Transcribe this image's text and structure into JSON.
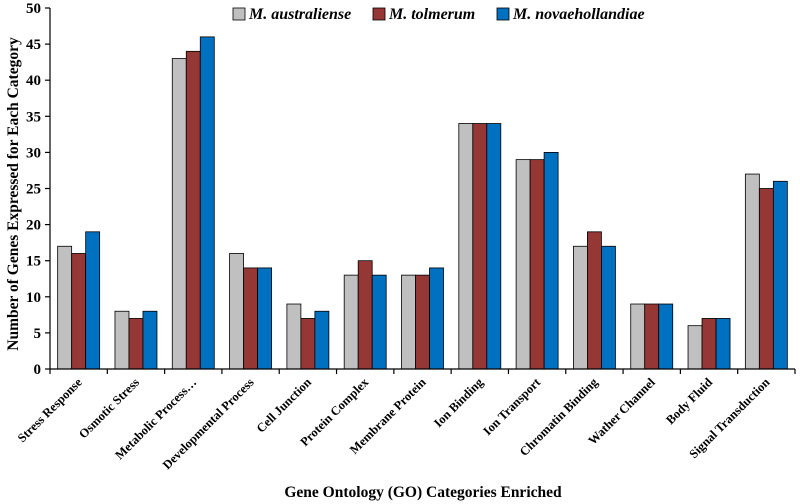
{
  "chart_data": {
    "type": "bar",
    "categories": [
      "Stress Response",
      "Osmotic Stress",
      "Metabolic Process…",
      "Developmental Process",
      "Cell Junction",
      "Protein Complex",
      "Membrane Protein",
      "Ion Binding",
      "Ion Transport",
      "Chromatin Binding",
      "Wather Channel",
      "Body Fluid",
      "Signal Transduction"
    ],
    "series": [
      {
        "name": "M. australiense",
        "color": "#c0c0c0",
        "values": [
          17,
          8,
          43,
          16,
          9,
          13,
          13,
          34,
          29,
          17,
          9,
          6,
          27
        ]
      },
      {
        "name": "M. tolmerum",
        "color": "#953735",
        "values": [
          16,
          7,
          44,
          14,
          7,
          15,
          13,
          34,
          29,
          19,
          9,
          7,
          25
        ]
      },
      {
        "name": "M. novaehollandiae",
        "color": "#0070c0",
        "values": [
          19,
          8,
          46,
          14,
          8,
          13,
          14,
          34,
          30,
          17,
          9,
          7,
          26
        ]
      }
    ],
    "xlabel": "Gene Ontology (GO) Categories Enriched",
    "ylabel": "Number of Genes Expressed for Each Category",
    "ylim": [
      0,
      50
    ],
    "yticks": [
      0,
      5,
      10,
      15,
      20,
      25,
      30,
      35,
      40,
      45,
      50
    ],
    "grid": false,
    "legend": "top-center"
  }
}
